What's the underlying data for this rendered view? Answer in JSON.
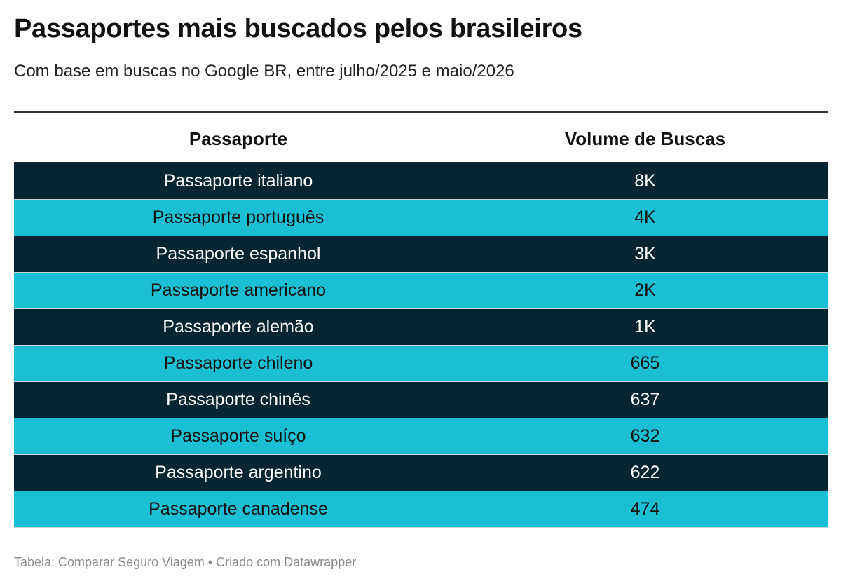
{
  "header": {
    "title": "Passaportes mais buscados pelos brasileiros",
    "subtitle": "Com base em buscas no Google BR, entre julho/2025 e maio/2026"
  },
  "colors": {
    "row_dark": "#062533",
    "row_light": "#1bbfd3",
    "text_dark_row": "#ffffff",
    "text_light_row": "#111111"
  },
  "chart_data": {
    "type": "table",
    "title": "Passaportes mais buscados pelos brasileiros",
    "subtitle": "Com base em buscas no Google BR, entre julho/2025 e maio/2026",
    "columns": [
      "Passaporte",
      "Volume de Buscas"
    ],
    "rows": [
      [
        "Passaporte italiano",
        "8K"
      ],
      [
        "Passaporte português",
        "4K"
      ],
      [
        "Passaporte espanhol",
        "3K"
      ],
      [
        "Passaporte americano",
        "2K"
      ],
      [
        "Passaporte alemão",
        "1K"
      ],
      [
        "Passaporte chileno",
        "665"
      ],
      [
        "Passaporte chinês",
        "637"
      ],
      [
        "Passaporte suíço",
        "632"
      ],
      [
        "Passaporte argentino",
        "622"
      ],
      [
        "Passaporte canadense",
        "474"
      ]
    ]
  },
  "footer": {
    "source": "Tabela: Comparar Seguro Viagem • Criado com Datawrapper"
  }
}
